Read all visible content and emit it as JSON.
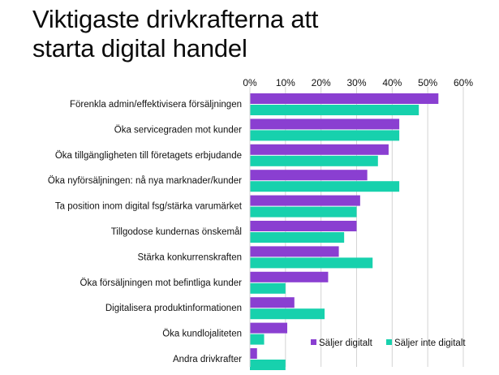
{
  "chart_data": {
    "type": "bar",
    "orientation": "horizontal",
    "title": [
      "Viktigaste drivkrafterna att",
      "starta digital handel"
    ],
    "xlim": [
      0,
      60
    ],
    "ticks": [
      0,
      10,
      20,
      30,
      40,
      50,
      60
    ],
    "tick_labels": [
      "0%",
      "10%",
      "20%",
      "30%",
      "40%",
      "50%",
      "60%"
    ],
    "grid": true,
    "legend_position": "bottom-right",
    "categories": [
      "Förenkla admin/effektivisera försäljningen",
      "Öka servicegraden mot kunder",
      "Öka tillgängligheten till företagets erbjudande",
      "Öka nyförsäljningen: nå nya marknader/kunder",
      "Ta position inom digital fsg/stärka varumärket",
      "Tillgodose kundernas önskemål",
      "Stärka konkurrenskraften",
      "Öka försäljningen mot befintliga kunder",
      "Digitalisera produktinformationen",
      "Öka kundlojaliteten",
      "Andra drivkrafter"
    ],
    "series": [
      {
        "name": "Säljer digitalt",
        "color": "#8a3fd1",
        "values": [
          53,
          42,
          39,
          33,
          31,
          30,
          25,
          22,
          12.5,
          10.5,
          2
        ]
      },
      {
        "name": "Säljer inte digitalt",
        "color": "#17d1ad",
        "values": [
          47.5,
          42,
          36,
          42,
          30,
          26.5,
          34.5,
          10,
          21,
          4,
          10
        ]
      }
    ]
  }
}
